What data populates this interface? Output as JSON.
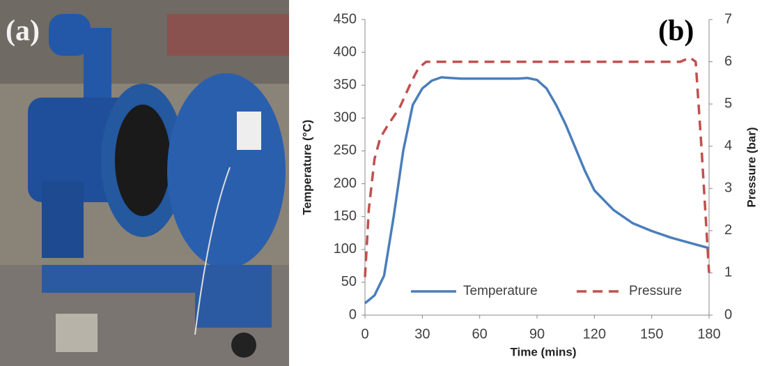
{
  "panel_a": {
    "label": "(a)"
  },
  "chart_data": {
    "type": "line",
    "panel_label": "(b)",
    "xlabel": "Time (mins)",
    "ylabel": "Temperature (°C)",
    "y2label": "Pressure (bar)",
    "xlim": [
      0,
      180
    ],
    "xticks": [
      0,
      30,
      60,
      90,
      120,
      150,
      180
    ],
    "ylim": [
      0,
      450
    ],
    "yticks": [
      0,
      50,
      100,
      150,
      200,
      250,
      300,
      350,
      400,
      450
    ],
    "y2lim": [
      0,
      7
    ],
    "y2ticks": [
      0,
      1,
      2,
      3,
      4,
      5,
      6,
      7
    ],
    "legend": "bottom",
    "series": [
      {
        "name": "Temperature",
        "color": "#4a7ebb",
        "dash": "solid",
        "axis": "y",
        "x": [
          0,
          5,
          10,
          15,
          20,
          25,
          30,
          35,
          40,
          45,
          50,
          60,
          70,
          80,
          85,
          90,
          95,
          100,
          105,
          110,
          115,
          120,
          130,
          140,
          150,
          160,
          170,
          180
        ],
        "values": [
          18,
          30,
          60,
          150,
          250,
          320,
          345,
          357,
          362,
          361,
          360,
          360,
          360,
          360,
          361,
          358,
          345,
          320,
          290,
          255,
          220,
          190,
          160,
          140,
          128,
          118,
          110,
          102
        ]
      },
      {
        "name": "Pressure",
        "color": "#c0504d",
        "dash": "dashed",
        "axis": "y2",
        "x": [
          0,
          2,
          5,
          8,
          12,
          18,
          24,
          28,
          32,
          40,
          60,
          90,
          120,
          150,
          165,
          170,
          173,
          176,
          178,
          180
        ],
        "values": [
          0.9,
          2.5,
          3.7,
          4.2,
          4.5,
          4.9,
          5.5,
          5.85,
          6,
          6,
          6,
          6,
          6,
          6,
          6,
          6.1,
          6.0,
          4,
          2.5,
          1.0
        ]
      }
    ]
  }
}
